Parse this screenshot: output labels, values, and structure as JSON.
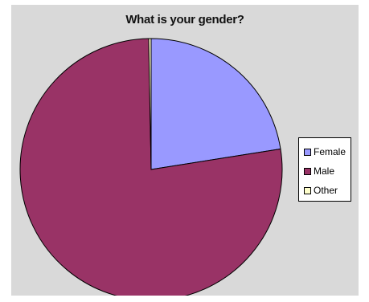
{
  "chart_data": {
    "type": "pie",
    "title": "What is your gender?",
    "categories": [
      "Female",
      "Male",
      "Other"
    ],
    "values": [
      22.5,
      77.2,
      0.3
    ],
    "colors": [
      "#9999ff",
      "#993366",
      "#ffffcc"
    ],
    "start_angle": "12 o'clock",
    "direction": "clockwise",
    "legend_position": "right"
  }
}
